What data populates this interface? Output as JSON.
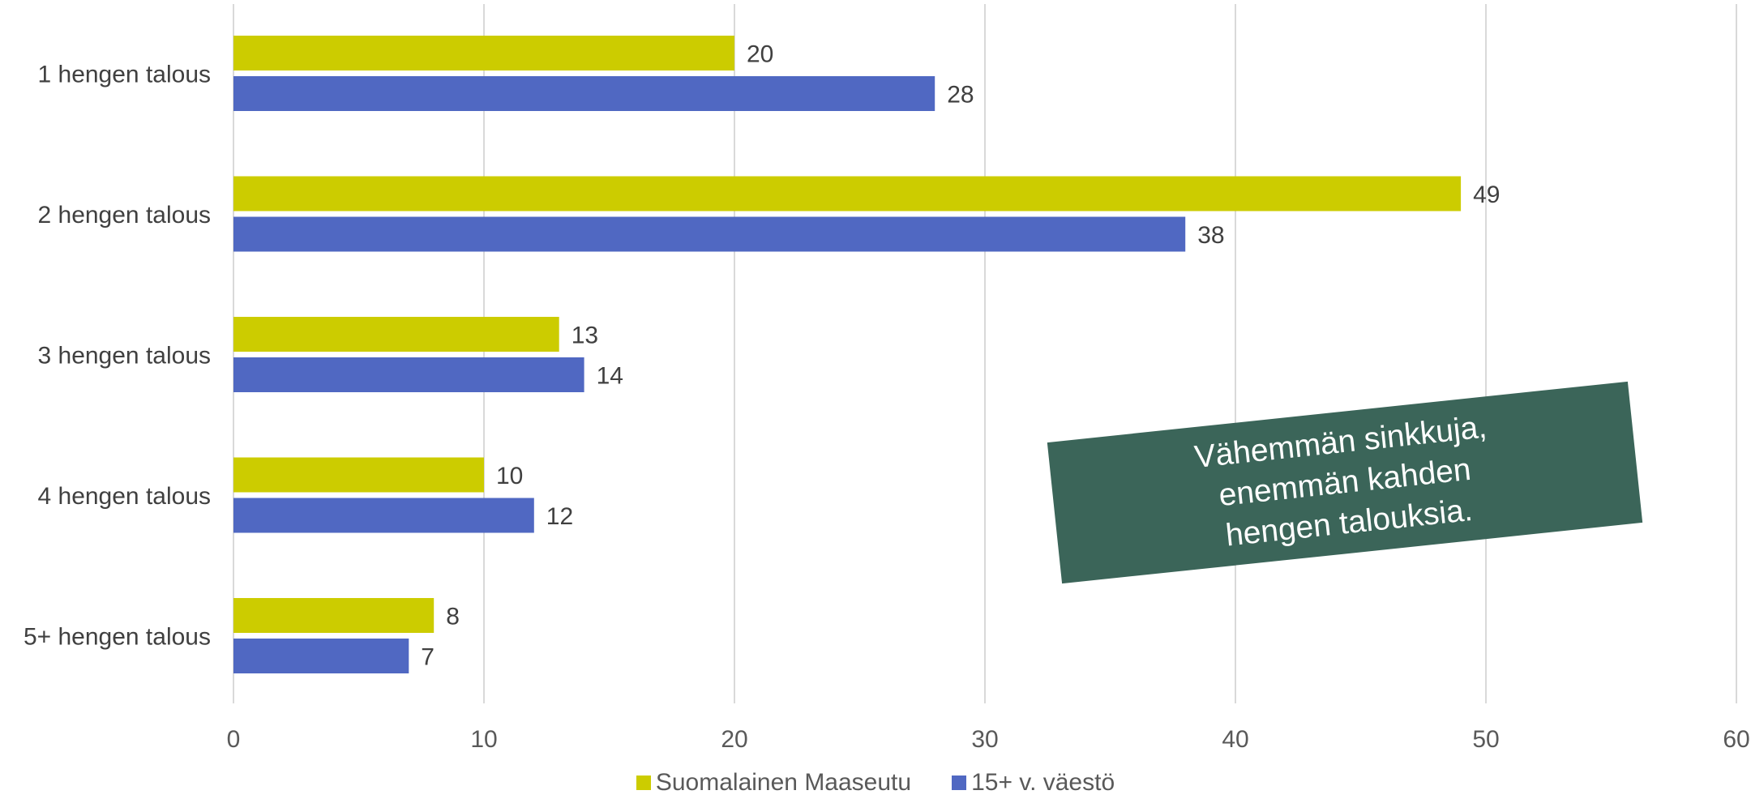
{
  "chart_data": {
    "type": "bar",
    "orientation": "horizontal",
    "categories": [
      "1 hengen talous",
      "2 hengen talous",
      "3 hengen talous",
      "4 hengen talous",
      "5+ hengen talous"
    ],
    "series": [
      {
        "name": "Suomalainen Maaseutu",
        "color": "#cccc00",
        "values": [
          20,
          49,
          13,
          10,
          8
        ]
      },
      {
        "name": "15+ v. väestö",
        "color": "#5068c2",
        "values": [
          28,
          38,
          14,
          12,
          7
        ]
      }
    ],
    "xlim": [
      0,
      60
    ],
    "xticks": [
      0,
      10,
      20,
      30,
      40,
      50,
      60
    ],
    "grid": true,
    "legend_position": "bottom",
    "annotation": "Vähemmän sinkkuja,\nenemmän kahden\nhengen talouksia.",
    "annotation_color": "#3b6559"
  }
}
